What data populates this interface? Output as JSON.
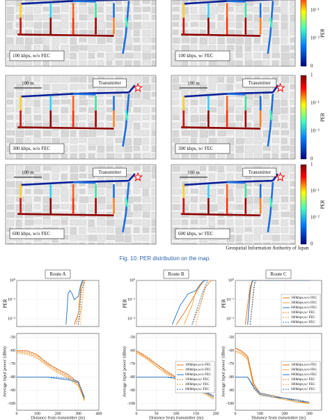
{
  "maps": {
    "panels": [
      {
        "label": "100 kbps, w/o FEC"
      },
      {
        "label": "100 kbps, w/ FEC"
      },
      {
        "label": "300 kbps, w/o FEC"
      },
      {
        "label": "300 kbps, w/ FEC"
      },
      {
        "label": "600 kbps, w/o FEC"
      },
      {
        "label": "600 kbps, w/ FEC"
      }
    ],
    "scale": "100 m",
    "transmitter": "Transmitter",
    "colorbar": {
      "title": "PER",
      "ticks": [
        "1",
        "10⁻¹",
        "10⁻²",
        "0"
      ]
    },
    "credit": "Geospatial Information Authority of Japan"
  },
  "caption": "Fig. 10.  PER distribution on the map.",
  "plots": {
    "labels": {
      "per": "PER",
      "power": "Average input power (dBm)",
      "x": "Distance from transmitter (m)"
    },
    "series": [
      {
        "name": "100kbps,w/o FEC",
        "color": "#e0701a",
        "dash": false
      },
      {
        "name": "300kbps,w/o FEC",
        "color": "#f2a640",
        "dash": false
      },
      {
        "name": "600kbps,w/o FEC",
        "color": "#1f6fbf",
        "dash": false
      },
      {
        "name": "100kbps,w/ FEC",
        "color": "#e0701a",
        "dash": true
      },
      {
        "name": "300kbps,w/ FEC",
        "color": "#f2a640",
        "dash": true
      },
      {
        "name": "600kbps,w/ FEC",
        "color": "#1f6fbf",
        "dash": true
      }
    ],
    "per_ylim": [
      0.004,
      1
    ],
    "per_yticks": [
      {
        "value": 1,
        "label": "10⁰"
      },
      {
        "value": 0.1,
        "label": "10⁻¹"
      },
      {
        "value": 0.01,
        "label": "10⁻²"
      }
    ],
    "power_ylim": [
      -105,
      -47
    ],
    "power_yticks": [
      -50,
      -60,
      -70,
      -80,
      -90,
      -100
    ],
    "routes": [
      {
        "title": "Route A",
        "xlim": [
          0,
          400
        ],
        "xticks": [
          0,
          100,
          200,
          300,
          400
        ],
        "per": {
          "legend": false,
          "series": [
            {
              "x": [
                280,
                300,
                310,
                320,
                330,
                340
              ],
              "values": [
                0.005,
                0.02,
                0.3,
                1,
                1,
                1
              ]
            },
            {
              "x": [
                290,
                305,
                315,
                325,
                335
              ],
              "values": [
                0.005,
                0.05,
                0.5,
                1,
                1
              ]
            },
            {
              "x": [
                240,
                250,
                260,
                270,
                280,
                300,
                310,
                320,
                330
              ],
              "values": [
                0.005,
                0.2,
                0.3,
                0.2,
                0.1,
                0.15,
                0.5,
                1,
                1
              ]
            },
            {
              "x": [
                300,
                320,
                330,
                340
              ],
              "values": [
                0.005,
                0.1,
                1,
                1
              ]
            },
            {
              "x": [
                310,
                325,
                335
              ],
              "values": [
                0.005,
                0.5,
                1
              ]
            },
            {
              "x": [
                300,
                315,
                330
              ],
              "values": [
                0.005,
                0.3,
                1
              ]
            }
          ]
        },
        "power": {
          "legend": false,
          "x": [
            0,
            50,
            100,
            150,
            200,
            250,
            300,
            330
          ],
          "series": [
            [
              -60,
              -60,
              -63,
              -70,
              -74,
              -78,
              -84,
              -97
            ],
            [
              -61,
              -62,
              -65,
              -71,
              -76,
              -80,
              -86,
              -98
            ],
            [
              -80,
              -80,
              -80,
              -80,
              -81,
              -82,
              -84,
              -96
            ],
            [
              -60,
              -61,
              -64,
              -69,
              -75,
              -79,
              -85,
              -95
            ],
            [
              -62,
              -63,
              -66,
              -72,
              -77,
              -81,
              -87,
              -97
            ],
            [
              -80,
              -80,
              -80,
              -80,
              -80,
              -81,
              -83,
              -95
            ]
          ]
        }
      },
      {
        "title": "Route B",
        "xlim": [
          0,
          200
        ],
        "xticks": [
          0,
          50,
          100,
          150,
          200
        ],
        "per": {
          "legend": false,
          "series": [
            {
              "x": [
                100,
                120,
                140,
                160,
                170,
                180,
                190
              ],
              "values": [
                0.005,
                0.02,
                0.1,
                0.5,
                1,
                1,
                1
              ]
            },
            {
              "x": [
                120,
                140,
                150,
                165,
                175,
                185
              ],
              "values": [
                0.005,
                0.05,
                0.3,
                0.8,
                1,
                1
              ]
            },
            {
              "x": [
                90,
                110,
                130,
                150,
                160,
                170,
                180
              ],
              "values": [
                0.005,
                0.05,
                0.2,
                0.3,
                0.6,
                1,
                1
              ]
            },
            {
              "x": [
                140,
                160,
                175,
                190
              ],
              "values": [
                0.005,
                0.05,
                0.5,
                1
              ]
            },
            {
              "x": [
                150,
                170,
                185
              ],
              "values": [
                0.005,
                0.3,
                1
              ]
            },
            {
              "x": [
                140,
                165,
                180
              ],
              "values": [
                0.005,
                0.2,
                1
              ]
            }
          ]
        },
        "power": {
          "legend": true,
          "x": [
            0,
            25,
            50,
            75,
            100,
            125,
            150,
            175,
            195
          ],
          "series": [
            [
              -60,
              -65,
              -70,
              -76,
              -80,
              -85,
              -88,
              -92,
              -95
            ],
            [
              -61,
              -66,
              -72,
              -77,
              -81,
              -86,
              -89,
              -93,
              -96
            ],
            [
              -80,
              -80,
              -80,
              -80,
              -81,
              -84,
              -88,
              -92,
              -95
            ],
            [
              -60,
              -64,
              -70,
              -75,
              -80,
              -85,
              -88,
              -91,
              -95
            ],
            [
              -62,
              -66,
              -71,
              -78,
              -82,
              -86,
              -90,
              -93,
              -97
            ],
            [
              -80,
              -80,
              -80,
              -80,
              -80,
              -83,
              -87,
              -91,
              -94
            ]
          ]
        }
      },
      {
        "title": "Route C",
        "xlim": [
          0,
          350
        ],
        "xticks": [
          0,
          100,
          200,
          300
        ],
        "per": {
          "legend": true,
          "series": [
            {
              "x": [
                40,
                60,
                70,
                80,
                300
              ],
              "values": [
                0.005,
                0.5,
                1,
                1,
                1
              ]
            },
            {
              "x": [
                50,
                65,
                75,
                300
              ],
              "values": [
                0.005,
                0.8,
                1,
                1
              ]
            },
            {
              "x": [
                50,
                60,
                70,
                80,
                300
              ],
              "values": [
                0.005,
                0.3,
                1,
                1,
                1
              ]
            },
            {
              "x": [
                60,
                75,
                85,
                300
              ],
              "values": [
                0.005,
                0.5,
                1,
                1
              ]
            },
            {
              "x": [
                60,
                80,
                300
              ],
              "values": [
                0.005,
                1,
                1
              ]
            },
            {
              "x": [
                60,
                80,
                300
              ],
              "values": [
                0.005,
                1,
                1
              ]
            }
          ]
        },
        "power": {
          "legend": true,
          "x": [
            0,
            25,
            50,
            75,
            100,
            150,
            200,
            250,
            300
          ],
          "series": [
            [
              -58,
              -60,
              -64,
              -85,
              -92,
              -94,
              -96,
              -98,
              -100
            ],
            [
              -60,
              -62,
              -66,
              -88,
              -93,
              -95,
              -97,
              -99,
              -100
            ],
            [
              -80,
              -80,
              -80,
              -88,
              -93,
              -95,
              -96,
              -98,
              -99
            ],
            [
              -58,
              -61,
              -65,
              -86,
              -92,
              -94,
              -96,
              -97,
              -99
            ],
            [
              -61,
              -63,
              -67,
              -89,
              -94,
              -95,
              -97,
              -98,
              -100
            ],
            [
              -80,
              -80,
              -80,
              -87,
              -92,
              -94,
              -96,
              -97,
              -99
            ]
          ]
        }
      }
    ]
  }
}
